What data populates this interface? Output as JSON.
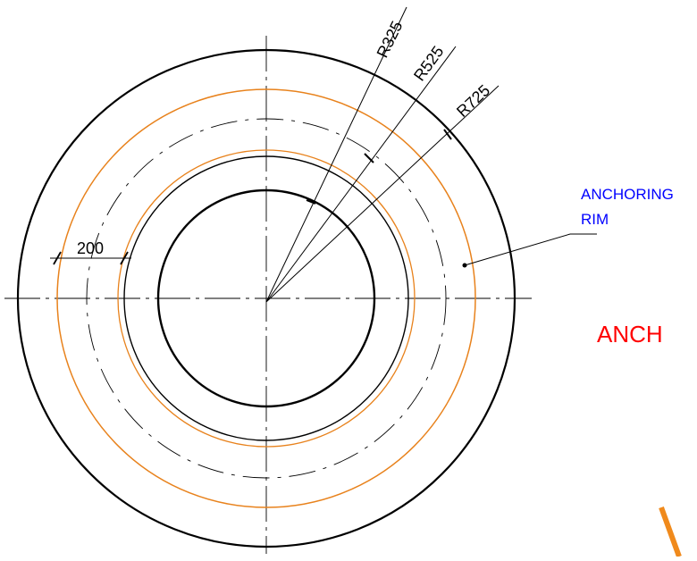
{
  "drawing": {
    "dimensions": {
      "radius_1": "R325",
      "radius_2": "R525",
      "radius_3": "R725",
      "width_200": "200"
    },
    "callout": {
      "line1": "ANCHORING",
      "line2": "RIM",
      "color": "#0000ff"
    },
    "title_fragment": {
      "text": "ANCH",
      "color": "#ff0000"
    },
    "colors": {
      "outline": "#000000",
      "rim": "#e8821c",
      "accent_stroke": "#f08a1c"
    }
  }
}
